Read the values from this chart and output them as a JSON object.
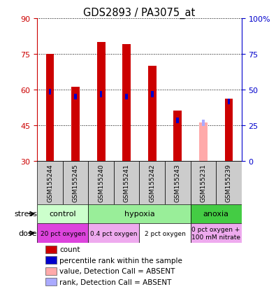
{
  "title": "GDS2893 / PA3075_at",
  "samples": [
    "GSM155244",
    "GSM155245",
    "GSM155240",
    "GSM155241",
    "GSM155242",
    "GSM155243",
    "GSM155231",
    "GSM155239"
  ],
  "count_values": [
    75,
    61,
    80,
    79,
    70,
    51,
    null,
    56
  ],
  "rank_values": [
    59,
    57,
    58,
    57,
    58,
    47,
    null,
    55
  ],
  "absent_count": [
    null,
    null,
    null,
    null,
    null,
    null,
    46,
    null
  ],
  "absent_rank": [
    null,
    null,
    null,
    null,
    null,
    null,
    46,
    null
  ],
  "ylim_left": [
    30,
    90
  ],
  "ylim_right": [
    0,
    100
  ],
  "yticks_left": [
    30,
    45,
    60,
    75,
    90
  ],
  "yticks_right": [
    0,
    25,
    50,
    75,
    100
  ],
  "ytick_labels_right": [
    "0",
    "25",
    "50",
    "75",
    "100%"
  ],
  "count_color": "#cc0000",
  "rank_color": "#0000cc",
  "absent_count_color": "#ffaaaa",
  "absent_rank_color": "#aaaaff",
  "left_axis_color": "#cc0000",
  "right_axis_color": "#0000cc",
  "stress_groups": [
    {
      "label": "control",
      "start": 0,
      "end": 2,
      "color": "#ccffcc"
    },
    {
      "label": "hypoxia",
      "start": 2,
      "end": 6,
      "color": "#99ee99"
    },
    {
      "label": "anoxia",
      "start": 6,
      "end": 8,
      "color": "#44cc44"
    }
  ],
  "dose_groups": [
    {
      "label": "20 pct oxygen",
      "start": 0,
      "end": 2,
      "color": "#dd44dd"
    },
    {
      "label": "0.4 pct oxygen",
      "start": 2,
      "end": 4,
      "color": "#eeaaee"
    },
    {
      "label": "2 pct oxygen",
      "start": 4,
      "end": 6,
      "color": "#ffffff"
    },
    {
      "label": "0 pct oxygen +\n100 mM nitrate",
      "start": 6,
      "end": 8,
      "color": "#eeaaee"
    }
  ],
  "legend_items": [
    {
      "color": "#cc0000",
      "label": "count"
    },
    {
      "color": "#0000cc",
      "label": "percentile rank within the sample"
    },
    {
      "color": "#ffaaaa",
      "label": "value, Detection Call = ABSENT"
    },
    {
      "color": "#aaaaff",
      "label": "rank, Detection Call = ABSENT"
    }
  ],
  "sample_box_color": "#cccccc",
  "count_bar_width": 0.32,
  "rank_bar_width": 0.1,
  "rank_bar_height": 2.5
}
